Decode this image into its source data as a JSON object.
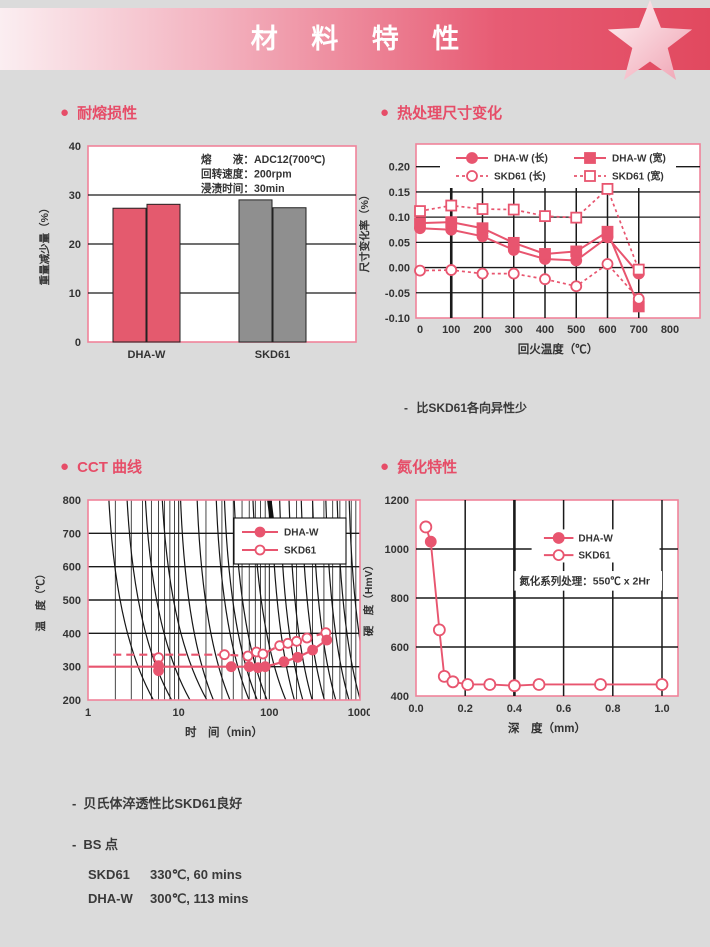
{
  "ui": {
    "header": {
      "title": "材 料 特 性"
    },
    "sections": [
      {
        "title": "耐熔损性"
      },
      {
        "title": "热处理尺寸变化"
      },
      {
        "title": "CCT 曲线"
      },
      {
        "title": "氮化特性"
      }
    ],
    "bullet": "●",
    "dim_note_bullet": "-",
    "dim_note": "比SKD61各向异性少",
    "footnotes": {
      "bullet": "-",
      "line1": "贝氏体淬透性比SKD61良好",
      "line2": "BS 点",
      "rows": [
        {
          "name": "SKD61",
          "value": "330℃, 60 mins"
        },
        {
          "name": "DHA-W",
          "value": "300℃, 113 mins"
        }
      ]
    }
  },
  "colors": {
    "accent": "#e64d68",
    "series_pink": "#e8556f",
    "chart_border": "#f0839a",
    "bar_pink": "#e45a6e",
    "bar_gray": "#8f8f8f",
    "grid_black": "#1a1a1a",
    "text_dark": "#333333"
  },
  "chart_data": [
    {
      "id": "melt-loss",
      "type": "bar",
      "title": "耐熔损性",
      "ylabel": "重量减少量（%）",
      "ylim": [
        0,
        40
      ],
      "yticks": [
        0,
        10,
        20,
        30,
        40
      ],
      "groups": [
        {
          "label": "DHA-W",
          "values": [
            27.3,
            28.1
          ],
          "color": "#e45a6e"
        },
        {
          "label": "SKD61",
          "values": [
            29.0,
            27.4
          ],
          "color": "#8f8f8f"
        }
      ],
      "annotation": [
        "熔　　液：ADC12(700℃)",
        "回转速度：200rpm",
        "浸渍时间：30min"
      ]
    },
    {
      "id": "dimension-change",
      "type": "line",
      "title": "热处理尺寸变化",
      "xlabel": "回火温度（℃）",
      "ylabel": "尺寸变化率（%）",
      "x": [
        0,
        100,
        200,
        300,
        400,
        500,
        600,
        700
      ],
      "xticks": [
        0,
        100,
        200,
        300,
        400,
        500,
        600,
        700,
        800
      ],
      "yticks": [
        0.2,
        0.15,
        0.1,
        0.05,
        0.0,
        -0.05,
        -0.1
      ],
      "ytick_labels": [
        "0.20",
        "0.15",
        "0.10",
        "0.05",
        "0.00",
        "-0.05",
        "-0.10"
      ],
      "ylim": [
        -0.1,
        0.245
      ],
      "series": [
        {
          "name": "DHA-W (长)",
          "marker": "circle",
          "fill": "filled",
          "line": "solid",
          "values": [
            0.078,
            0.075,
            0.062,
            0.035,
            0.017,
            0.014,
            0.06,
            -0.012
          ]
        },
        {
          "name": "DHA-W (宽)",
          "marker": "square",
          "fill": "filled",
          "line": "solid",
          "values": [
            0.088,
            0.09,
            0.078,
            0.049,
            0.027,
            0.032,
            0.071,
            -0.077
          ]
        },
        {
          "name": "SKD61 (长)",
          "marker": "circle",
          "fill": "open",
          "line": "dashed",
          "values": [
            -0.006,
            -0.005,
            -0.012,
            -0.012,
            -0.023,
            -0.037,
            0.007,
            -0.062
          ]
        },
        {
          "name": "SKD61 (宽)",
          "marker": "square",
          "fill": "open",
          "line": "dashed",
          "values": [
            0.112,
            0.123,
            0.116,
            0.115,
            0.102,
            0.099,
            0.156,
            -0.004
          ]
        }
      ]
    },
    {
      "id": "cct",
      "type": "line",
      "xscale": "log",
      "title": "CCT 曲线",
      "xlabel": "时　间（min）",
      "ylabel": "温　度（℃）",
      "xlim": [
        1,
        1000
      ],
      "ylim": [
        200,
        800
      ],
      "xticks": [
        1,
        10,
        100,
        1000
      ],
      "yticks": [
        200,
        300,
        400,
        500,
        600,
        700,
        800
      ],
      "series": [
        {
          "name": "DHA-W",
          "marker": "circle",
          "fill": "filled",
          "line": "solid",
          "line_points": [
            [
              1,
              300
            ],
            [
              38,
              300
            ],
            [
              60,
              300
            ],
            [
              75,
              297
            ],
            [
              90,
              300
            ],
            [
              145,
              315
            ],
            [
              205,
              328
            ],
            [
              300,
              350
            ],
            [
              430,
              380
            ]
          ],
          "marker_points": [
            [
              6,
              288
            ],
            [
              6,
              303
            ],
            [
              38,
              300
            ],
            [
              60,
              300
            ],
            [
              75,
              297
            ],
            [
              90,
              300
            ],
            [
              145,
              315
            ],
            [
              205,
              328
            ],
            [
              300,
              350
            ],
            [
              430,
              380
            ]
          ]
        },
        {
          "name": "SKD61",
          "marker": "circle",
          "fill": "open",
          "line": "dashed",
          "line_points": [
            [
              1.9,
              336
            ],
            [
              32,
              336
            ],
            [
              58,
              332
            ],
            [
              72,
              344
            ],
            [
              85,
              338
            ],
            [
              130,
              363
            ],
            [
              160,
              370
            ],
            [
              200,
              376
            ],
            [
              260,
              386
            ],
            [
              420,
              402
            ]
          ],
          "marker_points": [
            [
              6,
              327
            ],
            [
              32,
              336
            ],
            [
              58,
              332
            ],
            [
              72,
              344
            ],
            [
              85,
              338
            ],
            [
              130,
              363
            ],
            [
              160,
              370
            ],
            [
              200,
              376
            ],
            [
              260,
              386
            ],
            [
              420,
              402
            ]
          ]
        }
      ],
      "background_curves_top_times": [
        1.7,
        2.7,
        4.3,
        6.6,
        10.5,
        16,
        26,
        32,
        41,
        66,
        105,
        130,
        165,
        225,
        300,
        420,
        560,
        760
      ]
    },
    {
      "id": "nitriding",
      "type": "line",
      "title": "氮化特性",
      "xlabel": "深　度（mm）",
      "ylabel": "硬　度（HmV）",
      "xlim": [
        0,
        1.05
      ],
      "ylim": [
        400,
        1200
      ],
      "xticks": [
        0.0,
        0.2,
        0.4,
        0.6,
        0.8,
        1.0
      ],
      "xtick_labels": [
        "0.0",
        "0.2",
        "0.4",
        "0.6",
        "0.8",
        "1.0"
      ],
      "yticks": [
        400,
        600,
        800,
        1000,
        1200
      ],
      "annotation": "氮化系列处理：550℃ x 2Hr",
      "legend": [
        "DHA-W",
        "SKD61"
      ],
      "line_points": [
        [
          0.04,
          1090
        ],
        [
          0.06,
          1030
        ],
        [
          0.095,
          670
        ],
        [
          0.115,
          480
        ],
        [
          0.15,
          458
        ],
        [
          0.21,
          447
        ],
        [
          0.3,
          447
        ],
        [
          0.4,
          442
        ],
        [
          0.5,
          447
        ],
        [
          0.75,
          447
        ],
        [
          1.0,
          447
        ]
      ],
      "markers": {
        "open": [
          [
            0.04,
            1090
          ],
          [
            0.095,
            670
          ],
          [
            0.115,
            480
          ],
          [
            0.15,
            458
          ],
          [
            0.21,
            447
          ],
          [
            0.3,
            447
          ],
          [
            0.4,
            442
          ],
          [
            0.5,
            447
          ],
          [
            0.75,
            447
          ],
          [
            1.0,
            447
          ]
        ],
        "filled": [
          [
            0.06,
            1030
          ]
        ]
      }
    }
  ]
}
